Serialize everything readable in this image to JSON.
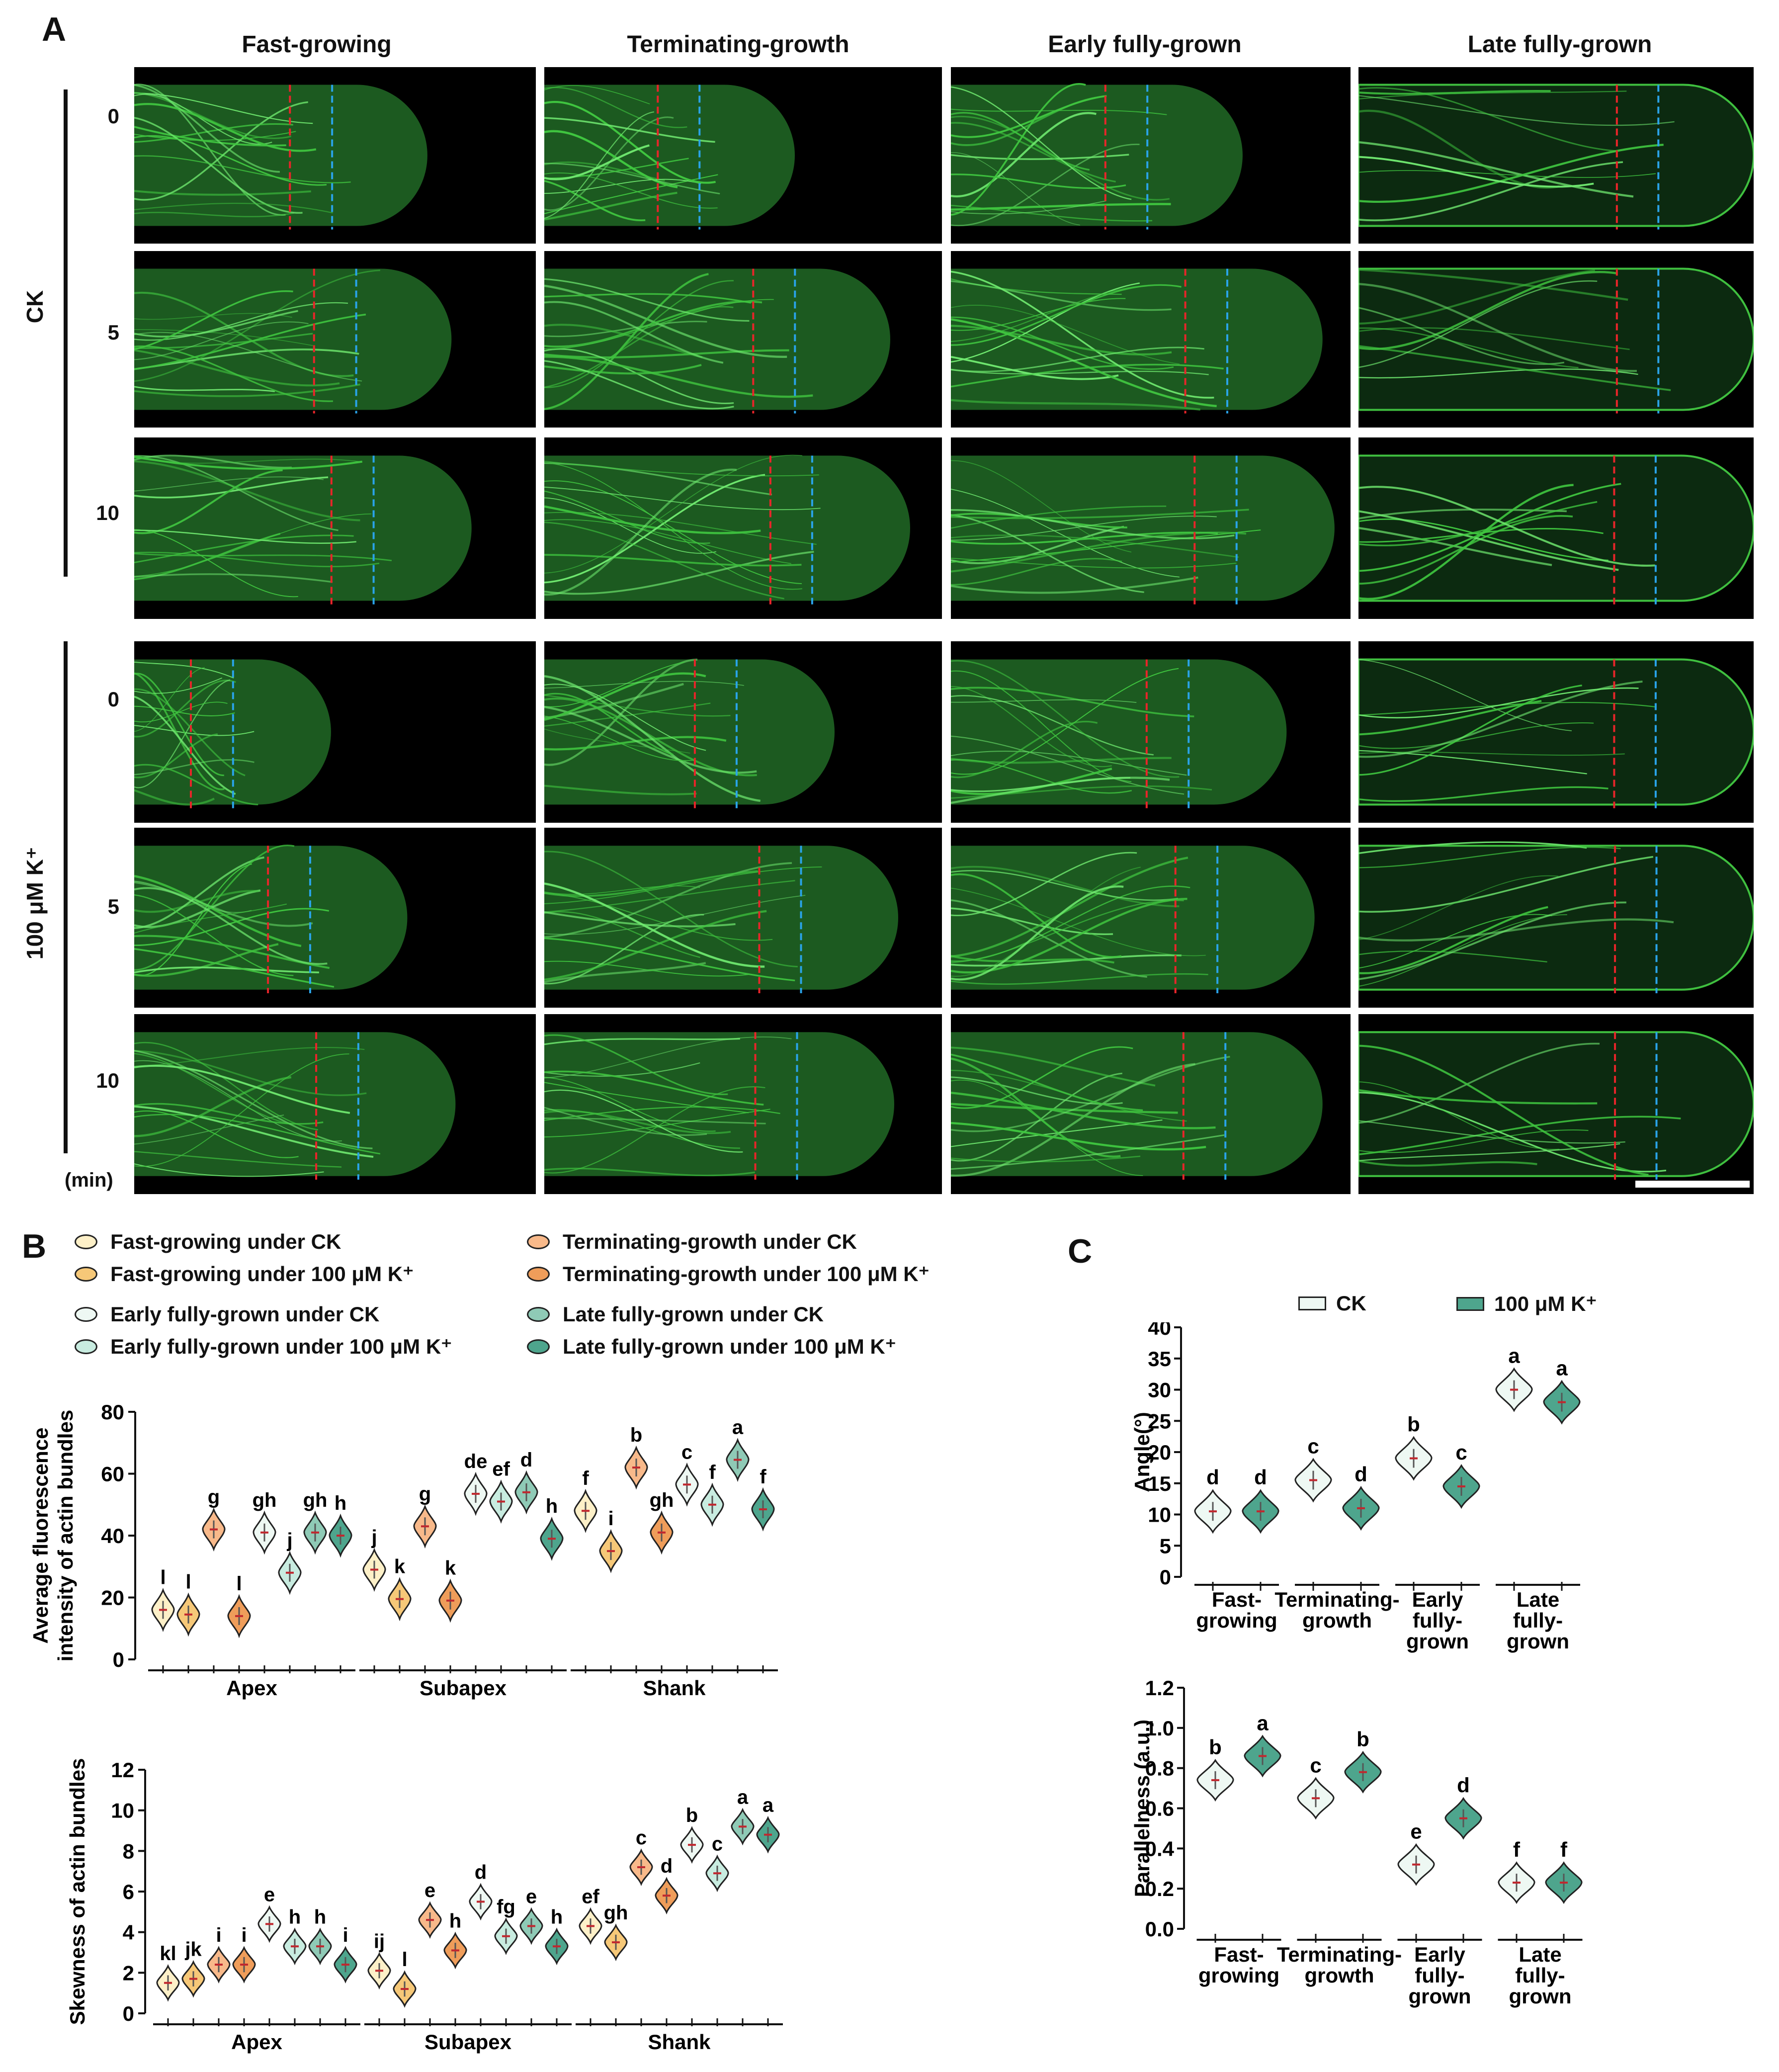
{
  "panel_a": {
    "letter": "A",
    "columns": [
      "Fast-growing",
      "Terminating-growth",
      "Early fully-grown",
      "Late fully-grown"
    ],
    "groups": [
      {
        "label": "CK",
        "times": [
          "0",
          "5",
          "10"
        ]
      },
      {
        "label": "100 μM K⁺",
        "times": [
          "0",
          "5",
          "10"
        ]
      }
    ],
    "time_unit": "(min)"
  },
  "panel_b": {
    "letter": "B",
    "legend": [
      {
        "label": "Fast-growing under CK",
        "color": "#fdf0c8"
      },
      {
        "label": "Fast-growing under 100 μM K⁺",
        "color": "#f6c878"
      },
      {
        "label": "Terminating-growth under CK",
        "color": "#f8b98a"
      },
      {
        "label": "Terminating-growth under 100 μM K⁺",
        "color": "#ef9d5a"
      },
      {
        "label": "Early fully-grown under CK",
        "color": "#eef8f3"
      },
      {
        "label": "Early fully-grown under 100 μM K⁺",
        "color": "#c8ece0"
      },
      {
        "label": "Late fully-grown under CK",
        "color": "#8fcab6"
      },
      {
        "label": "Late fully-grown under 100 μM K⁺",
        "color": "#4ea58d"
      }
    ]
  },
  "panel_c": {
    "letter": "C",
    "legend": [
      {
        "label": "CK",
        "color": "#eef8f3"
      },
      {
        "label": "100 μM K⁺",
        "color": "#4ea58d"
      }
    ]
  },
  "chart_data": [
    {
      "type": "violin",
      "ylabel": "Average fluorescence intensity of actin bundles",
      "ylim": [
        0,
        80
      ],
      "yticks": [
        0,
        20,
        40,
        60,
        80
      ],
      "groups": [
        "Apex",
        "Subapex",
        "Shank"
      ],
      "values": [
        16,
        14.5,
        42,
        14,
        41,
        28,
        41,
        40,
        29,
        19.5,
        43,
        19,
        53.5,
        51,
        54,
        39,
        48,
        35,
        62,
        41,
        56.5,
        50,
        64.5,
        48.5
      ],
      "letters": [
        "l",
        "l",
        "g",
        "l",
        "gh",
        "j",
        "gh",
        "h",
        "j",
        "k",
        "g",
        "k",
        "de",
        "ef",
        "d",
        "h",
        "f",
        "i",
        "b",
        "gh",
        "c",
        "f",
        "a",
        "f"
      ]
    },
    {
      "type": "violin",
      "ylabel": "Skewness of actin bundles",
      "ylim": [
        0,
        12
      ],
      "yticks": [
        0,
        2,
        4,
        6,
        8,
        10,
        12
      ],
      "groups": [
        "Apex",
        "Subapex",
        "Shank"
      ],
      "values": [
        1.5,
        1.7,
        2.4,
        2.4,
        4.4,
        3.3,
        3.3,
        2.4,
        2.1,
        1.2,
        4.6,
        3.1,
        5.5,
        3.8,
        4.3,
        3.3,
        4.3,
        3.5,
        7.2,
        5.8,
        8.3,
        6.9,
        9.2,
        8.8
      ],
      "letters": [
        "kl",
        "jk",
        "i",
        "i",
        "e",
        "h",
        "h",
        "i",
        "ij",
        "l",
        "e",
        "h",
        "d",
        "fg",
        "e",
        "h",
        "ef",
        "gh",
        "c",
        "d",
        "b",
        "c",
        "a",
        "a"
      ]
    },
    {
      "type": "violin",
      "ylabel": "Angle(°)",
      "ylim": [
        0,
        40
      ],
      "yticks": [
        0,
        5,
        10,
        15,
        20,
        25,
        30,
        35,
        40
      ],
      "categories": [
        "Fast-growing",
        "Terminating-growth",
        "Early fully-grown",
        "Late fully-grown"
      ],
      "series": [
        {
          "name": "CK",
          "values": [
            10.5,
            15.5,
            19,
            30
          ],
          "letters": [
            "d",
            "c",
            "b",
            "a"
          ]
        },
        {
          "name": "100 μM K⁺",
          "values": [
            10.5,
            11,
            14.5,
            28
          ],
          "letters": [
            "d",
            "d",
            "c",
            "a"
          ]
        }
      ]
    },
    {
      "type": "violin",
      "ylabel": "Parallelness (a.u.)",
      "ylim": [
        0,
        1.2
      ],
      "yticks": [
        0.0,
        0.2,
        0.4,
        0.6,
        0.8,
        1.0,
        1.2
      ],
      "categories": [
        "Fast-growing",
        "Terminating-growth",
        "Early fully-grown",
        "Late fully-grown"
      ],
      "series": [
        {
          "name": "CK",
          "values": [
            0.74,
            0.65,
            0.32,
            0.23
          ],
          "letters": [
            "b",
            "c",
            "e",
            "f"
          ]
        },
        {
          "name": "100 μM K⁺",
          "values": [
            0.86,
            0.78,
            0.55,
            0.23
          ],
          "letters": [
            "a",
            "b",
            "d",
            "f"
          ]
        }
      ]
    }
  ],
  "tick_text": {
    "b_top": [
      "0",
      "20",
      "40",
      "60",
      "80"
    ],
    "b_bot": [
      "0",
      "2",
      "4",
      "6",
      "8",
      "10",
      "12"
    ],
    "c_top": [
      "0",
      "5",
      "10",
      "15",
      "20",
      "25",
      "30",
      "35",
      "40"
    ],
    "c_bot": [
      "0.0",
      "0.2",
      "0.4",
      "0.6",
      "0.8",
      "1.0",
      "1.2"
    ],
    "c_categories": [
      [
        "Fast-",
        "growing"
      ],
      [
        "Terminating-",
        "growth"
      ],
      [
        "Early",
        "fully-",
        "grown"
      ],
      [
        "Late",
        "fully-",
        "grown"
      ]
    ]
  }
}
